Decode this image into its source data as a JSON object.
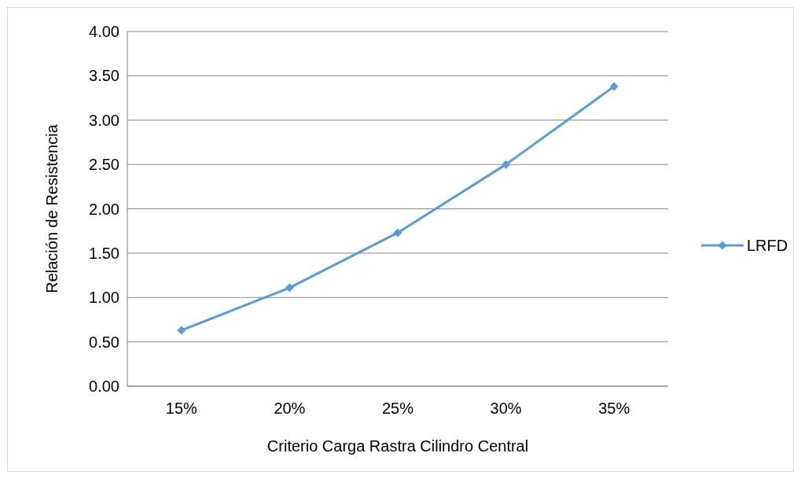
{
  "chart_data": {
    "type": "line",
    "xlabel": "Criterio Carga Rastra Cilindro Central",
    "ylabel": "Relación de Resistencia",
    "categories": [
      "15%",
      "20%",
      "25%",
      "30%",
      "35%"
    ],
    "series": [
      {
        "name": "LRFD",
        "color": "#5b9bd5",
        "values": [
          0.63,
          1.11,
          1.73,
          2.5,
          3.38
        ]
      }
    ],
    "ylim": [
      0,
      4
    ],
    "yticks": [
      {
        "value": 0,
        "label": "0.00"
      },
      {
        "value": 0.5,
        "label": "0.50"
      },
      {
        "value": 1,
        "label": "1.00"
      },
      {
        "value": 1.5,
        "label": "1.50"
      },
      {
        "value": 2,
        "label": "2.00"
      },
      {
        "value": 2.5,
        "label": "2.50"
      },
      {
        "value": 3,
        "label": "3.00"
      },
      {
        "value": 3.5,
        "label": "3.50"
      },
      {
        "value": 4,
        "label": "4.00"
      }
    ],
    "grid": "y",
    "legend": "right",
    "marker": "diamond",
    "line_style": "solid"
  }
}
